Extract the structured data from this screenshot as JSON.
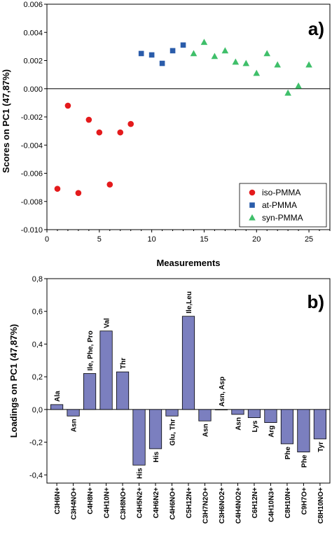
{
  "chart_data": [
    {
      "type": "scatter",
      "panel_label": "a)",
      "xlabel": "Measurements",
      "ylabel": "Scores on PC1 (47,87%)",
      "xlim": [
        0,
        27
      ],
      "ylim": [
        -0.01,
        0.006
      ],
      "x_ticks": [
        0,
        5,
        10,
        15,
        20,
        25
      ],
      "x_tick_labels": [
        "0",
        "5",
        "10",
        "15",
        "20",
        "25"
      ],
      "y_ticks": [
        0.006,
        0.004,
        0.002,
        0.0,
        -0.002,
        -0.004,
        -0.006,
        -0.008,
        -0.01
      ],
      "y_tick_labels": [
        "0.006",
        "0.004",
        "0.002",
        "0.000",
        "-0.002",
        "-0.004",
        "-0.006",
        "-0.008",
        "-0.010"
      ],
      "zero_line": true,
      "legend_position": "bottom-right",
      "series": [
        {
          "name": "iso-PMMA",
          "marker": "circle",
          "color": "#e41a1c",
          "points": [
            {
              "x": 1,
              "y": -0.0071
            },
            {
              "x": 2,
              "y": -0.0012
            },
            {
              "x": 3,
              "y": -0.0074
            },
            {
              "x": 4,
              "y": -0.0022
            },
            {
              "x": 5,
              "y": -0.0031
            },
            {
              "x": 6,
              "y": -0.0068
            },
            {
              "x": 7,
              "y": -0.0031
            },
            {
              "x": 8,
              "y": -0.0025
            }
          ]
        },
        {
          "name": "at-PMMA",
          "marker": "square",
          "color": "#2a5caa",
          "points": [
            {
              "x": 9,
              "y": 0.0025
            },
            {
              "x": 10,
              "y": 0.0024
            },
            {
              "x": 11,
              "y": 0.0018
            },
            {
              "x": 12,
              "y": 0.0027
            },
            {
              "x": 13,
              "y": 0.0031
            }
          ]
        },
        {
          "name": "syn-PMMA",
          "marker": "triangle",
          "color": "#3fbf6a",
          "points": [
            {
              "x": 14,
              "y": 0.0025
            },
            {
              "x": 15,
              "y": 0.0033
            },
            {
              "x": 16,
              "y": 0.0023
            },
            {
              "x": 17,
              "y": 0.0027
            },
            {
              "x": 18,
              "y": 0.0019
            },
            {
              "x": 19,
              "y": 0.0018
            },
            {
              "x": 20,
              "y": 0.0011
            },
            {
              "x": 21,
              "y": 0.0025
            },
            {
              "x": 22,
              "y": 0.0017
            },
            {
              "x": 23,
              "y": -0.0003
            },
            {
              "x": 24,
              "y": 0.0002
            },
            {
              "x": 25,
              "y": 0.0017
            }
          ]
        }
      ]
    },
    {
      "type": "bar",
      "panel_label": "b)",
      "xlabel": "",
      "ylabel": "Loadings on PC1 (47,87%)",
      "ylim": [
        -0.45,
        0.8
      ],
      "y_ticks": [
        0.8,
        0.6,
        0.4,
        0.2,
        0.0,
        -0.2,
        -0.4
      ],
      "y_tick_labels": [
        "0,8",
        "0,6",
        "0,4",
        "0,2",
        "0,0",
        "-0,2",
        "-0,4"
      ],
      "zero_line": true,
      "bar_color": "#7b7fbf",
      "categories": [
        "C3H6N+",
        "C3H4NO+",
        "C4H8N+",
        "C4H10N+",
        "C3H8NO+",
        "C4H5N2+",
        "C4H6N2+",
        "C4H6NO+",
        "C5H12N+",
        "C3H7N2O+",
        "C3H6NO2+",
        "C4H4NO2+",
        "C6H12N+",
        "C4H10N3+",
        "C8H10N+",
        "C9H7O+",
        "C8H10NO+"
      ],
      "values": [
        0.03,
        -0.04,
        0.22,
        0.48,
        0.23,
        -0.34,
        -0.24,
        -0.04,
        0.57,
        -0.07,
        0.0,
        -0.03,
        -0.05,
        -0.08,
        -0.21,
        -0.26,
        -0.18
      ],
      "bar_labels": [
        "Ala",
        "Asn",
        "Ile, Phe, Pro",
        "Val",
        "Thr",
        "His",
        "His",
        "Glu, Thr",
        "Ile,Leu",
        "Asn",
        "Asn, Asp",
        "Asn",
        "Lys",
        "Arg",
        "Phe",
        "Phe",
        "Tyr"
      ]
    }
  ]
}
